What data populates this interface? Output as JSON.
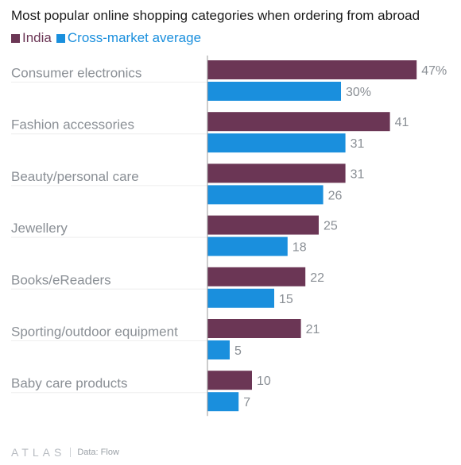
{
  "chart_data": {
    "type": "bar",
    "orientation": "horizontal",
    "title": "Most popular online shopping categories when ordering from abroad",
    "categories": [
      "Consumer electronics",
      "Fashion accessories",
      "Beauty/personal care",
      "Jewellery",
      "Books/eReaders",
      "Sporting/outdoor equipment",
      "Baby care products"
    ],
    "series": [
      {
        "name": "India",
        "color": "#6b3655",
        "values": [
          47,
          41,
          31,
          25,
          22,
          21,
          10
        ],
        "labels": [
          "47%",
          "41",
          "31",
          "25",
          "22",
          "21",
          "10"
        ]
      },
      {
        "name": "Cross-market average",
        "color": "#1a8fdd",
        "values": [
          30,
          31,
          26,
          18,
          15,
          5,
          7
        ],
        "labels": [
          "30%",
          "31",
          "26",
          "18",
          "15",
          "5",
          "7"
        ]
      }
    ],
    "xlim": [
      0,
      50
    ],
    "legend_position": "top-left",
    "grid": false
  },
  "footer": {
    "brand": "ATLAS",
    "source": "Data: Flow"
  }
}
